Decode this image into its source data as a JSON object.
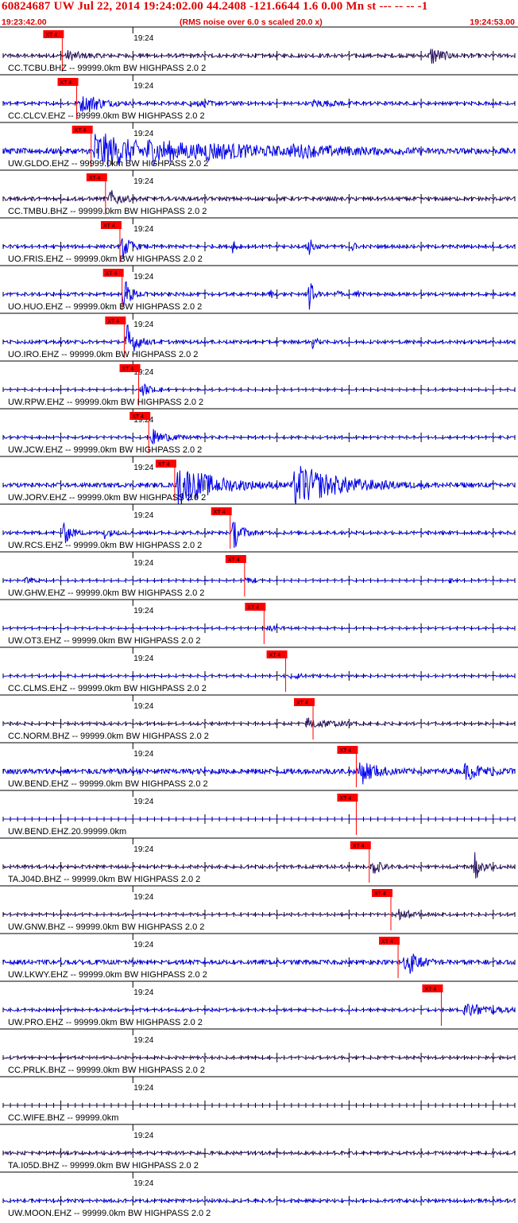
{
  "header": {
    "title": "60824687 UW Jul 22, 2014 19:24:02.00   44.2408 -121.6644  1.6 0.00 Mn st --- -- --  -1",
    "start_time": "19:23:42.00",
    "end_time": "19:24:53.00",
    "note": "(RMS noise over 6.0 s scaled 20.0 x)"
  },
  "chart_data": {
    "type": "seismogram",
    "x_range_s": [
      0,
      71
    ],
    "minute_mark": {
      "label": "19:24",
      "t_s": 18
    },
    "pick_label": "XT 4",
    "colors": {
      "blue": "#0000ee",
      "dark": "#2a1060",
      "pick": "#ff0000",
      "text": "#000000"
    },
    "traces": [
      {
        "label": "CC.TCBU.BHZ -- 99999.0km BW  HIGHPASS  2.0  2",
        "pick_s": 8.2,
        "color": "dark",
        "noise": 0.12,
        "bursts": [
          [
            8.7,
            0.35,
            2
          ],
          [
            59.4,
            0.7,
            1.5
          ]
        ]
      },
      {
        "label": "CC.CLCV.EHZ -- 99999.0km BW  HIGHPASS  2.0  2",
        "pick_s": 10.2,
        "color": "blue",
        "noise": 0.1,
        "bursts": [
          [
            10.7,
            0.6,
            2
          ],
          [
            12,
            0.3,
            2
          ],
          [
            26,
            0.2,
            3
          ],
          [
            43,
            0.25,
            3
          ]
        ]
      },
      {
        "label": "UW.GLDO.EHZ -- 99999.0km BW  HIGHPASS  2.0  2",
        "pick_s": 12.2,
        "color": "blue",
        "noise": 0.2,
        "bursts": [
          [
            12.6,
            1.3,
            7
          ],
          [
            20,
            0.4,
            8
          ],
          [
            28,
            0.3,
            8
          ],
          [
            40,
            0.25,
            8
          ]
        ]
      },
      {
        "label": "CC.TMBU.BHZ -- 99999.0km BW  HIGHPASS  2.0  2",
        "pick_s": 14.2,
        "color": "dark",
        "noise": 0.12,
        "bursts": [
          [
            14.8,
            0.6,
            1.5
          ]
        ]
      },
      {
        "label": "UO.FRIS.EHZ -- 99999.0km BW  HIGHPASS  2.0  2",
        "pick_s": 16.2,
        "color": "blue",
        "noise": 0.1,
        "bursts": [
          [
            16.6,
            0.9,
            1
          ],
          [
            32,
            0.8,
            0.3
          ],
          [
            42.5,
            1.2,
            0.4
          ],
          [
            48.5,
            0.5,
            0.3
          ]
        ]
      },
      {
        "label": "UO.HUO.EHZ -- 99999.0km BW  HIGHPASS  2.0  2",
        "pick_s": 16.5,
        "color": "blue",
        "noise": 0.1,
        "bursts": [
          [
            16.8,
            1.1,
            1
          ],
          [
            37,
            0.5,
            0.3
          ],
          [
            42.5,
            1.2,
            0.5
          ],
          [
            46.5,
            0.5,
            0.3
          ],
          [
            49,
            0.4,
            0.3
          ]
        ]
      },
      {
        "label": "UO.IRO.EHZ -- 99999.0km BW  HIGHPASS  2.0  2",
        "pick_s": 16.8,
        "color": "blue",
        "noise": 0.1,
        "bursts": [
          [
            17.2,
            1.3,
            1.2
          ],
          [
            43,
            0.6,
            0.4
          ]
        ]
      },
      {
        "label": "UW.RPW.EHZ -- 99999.0km BW  HIGHPASS  2.0  2",
        "pick_s": 18.8,
        "color": "blue",
        "noise": 0.05,
        "bursts": [
          [
            19.3,
            0.45,
            1.5
          ]
        ]
      },
      {
        "label": "UW.JCW.EHZ -- 99999.0km BW  HIGHPASS  2.0  2",
        "pick_s": 20.2,
        "color": "blue",
        "noise": 0.07,
        "bursts": [
          [
            20.6,
            0.6,
            2
          ]
        ]
      },
      {
        "label": "UW.JORV.EHZ -- 99999.0km BW  HIGHPASS  2.0  2",
        "pick_s": 23.8,
        "color": "blue",
        "noise": 0.14,
        "bursts": [
          [
            24.3,
            1.4,
            5
          ],
          [
            40.5,
            1.4,
            6
          ]
        ]
      },
      {
        "label": "UW.RCS.EHZ -- 99999.0km BW  HIGHPASS  2.0  2",
        "pick_s": 31.5,
        "color": "blue",
        "noise": 0.1,
        "bursts": [
          [
            8.5,
            0.8,
            1
          ],
          [
            32,
            1.2,
            1
          ],
          [
            14,
            0.4,
            1
          ]
        ]
      },
      {
        "label": "UW.GHW.EHZ -- 99999.0km BW  HIGHPASS  2.0  2",
        "pick_s": 33.5,
        "color": "blue",
        "noise": 0.05,
        "bursts": [
          [
            33.8,
            0.35,
            1
          ],
          [
            3.3,
            0.3,
            1
          ],
          [
            62,
            0.25,
            0.5
          ]
        ]
      },
      {
        "label": "UW.OT3.EHZ -- 99999.0km BW  HIGHPASS  2.0  2",
        "pick_s": 36.2,
        "color": "blue",
        "noise": 0.05,
        "bursts": [
          [
            36.8,
            0.25,
            1.5
          ]
        ]
      },
      {
        "label": "CC.CLMS.EHZ -- 99999.0km BW  HIGHPASS  2.0  2",
        "pick_s": 39.2,
        "color": "blue",
        "noise": 0.06,
        "bursts": [
          [
            39.8,
            0.22,
            2
          ]
        ]
      },
      {
        "label": "CC.NORM.BHZ -- 99999.0km BW  HIGHPASS  2.0  2",
        "pick_s": 43,
        "color": "dark",
        "noise": 0.08,
        "bursts": [
          [
            42.2,
            0.45,
            3
          ]
        ]
      },
      {
        "label": "UW.BEND.EHZ -- 99999.0km BW  HIGHPASS  2.0  2",
        "pick_s": 49,
        "color": "blue",
        "noise": 0.18,
        "bursts": [
          [
            49.5,
            0.9,
            2
          ],
          [
            64,
            0.5,
            3
          ]
        ]
      },
      {
        "label": "UW.BEND.EHZ.20.99999.0km",
        "pick_s": 49,
        "color": "blue",
        "noise": 0,
        "bursts": [],
        "flat": true
      },
      {
        "label": "TA.J04D.BHZ -- 99999.0km BW  HIGHPASS  2.0  2",
        "pick_s": 50.8,
        "color": "dark",
        "noise": 0.1,
        "bursts": [
          [
            51.4,
            0.6,
            1
          ],
          [
            65.5,
            1.2,
            1
          ]
        ]
      },
      {
        "label": "UW.GNW.BHZ -- 99999.0km BW  HIGHPASS  2.0  2",
        "pick_s": 53.8,
        "color": "dark",
        "noise": 0.07,
        "bursts": [
          [
            54.4,
            0.5,
            2
          ]
        ]
      },
      {
        "label": "UW.LKWY.EHZ -- 99999.0km BW  HIGHPASS  2.0  2",
        "pick_s": 54.8,
        "color": "blue",
        "noise": 0.15,
        "bursts": [
          [
            55.8,
            1.1,
            1.5
          ]
        ]
      },
      {
        "label": "UW.PRO.EHZ -- 99999.0km BW  HIGHPASS  2.0  2",
        "pick_s": 60.8,
        "color": "blue",
        "noise": 0.08,
        "bursts": [
          [
            64,
            0.5,
            4
          ]
        ]
      },
      {
        "label": "CC.PRLK.BHZ -- 99999.0km BW  HIGHPASS  2.0  2",
        "pick_s": null,
        "color": "dark",
        "noise": 0.08,
        "bursts": []
      },
      {
        "label": "CC.WIFE.BHZ -- 99999.0km",
        "pick_s": null,
        "color": "dark",
        "noise": 0,
        "bursts": [],
        "flat": true
      },
      {
        "label": "TA.I05D.BHZ -- 99999.0km BW  HIGHPASS  2.0  2",
        "pick_s": null,
        "color": "dark",
        "noise": 0.1,
        "bursts": []
      },
      {
        "label": "UW.MOON.EHZ -- 99999.0km BW  HIGHPASS  2.0  2",
        "pick_s": null,
        "color": "blue",
        "noise": 0.1,
        "bursts": []
      }
    ]
  }
}
